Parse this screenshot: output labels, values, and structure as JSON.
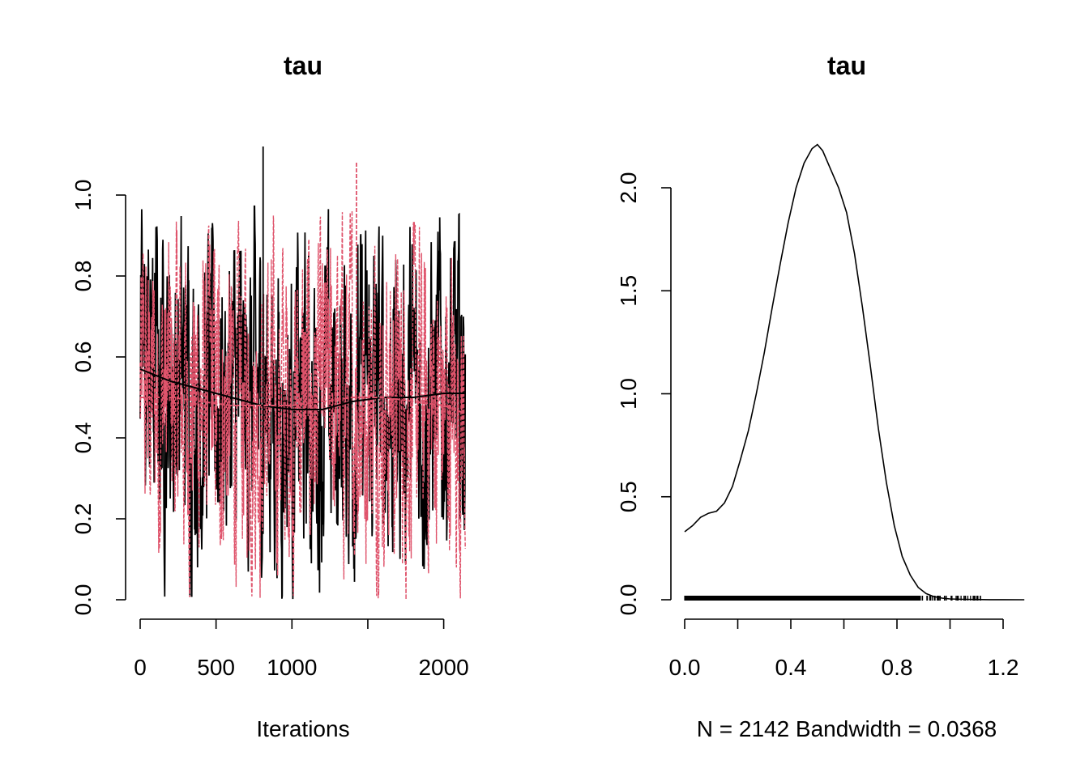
{
  "chart_data": [
    {
      "type": "line",
      "subtype": "trace",
      "title": "tau",
      "xlabel": "Iterations",
      "ylabel": "",
      "xlim": [
        0,
        2142
      ],
      "ylim": [
        0,
        1.1
      ],
      "x_ticks": [
        0,
        500,
        1000,
        1500,
        2000
      ],
      "x_tick_labels": [
        "0",
        "500",
        "1000",
        "",
        "2000"
      ],
      "y_ticks": [
        0,
        0.2,
        0.4,
        0.6,
        0.8,
        1.0
      ],
      "y_tick_labels": [
        "0.0",
        "0.2",
        "0.4",
        "0.6",
        "0.8",
        "1.0"
      ],
      "series": [
        {
          "color": "#000000",
          "line_style": "solid",
          "smooth_x": [
            0,
            200,
            400,
            600,
            800,
            1000,
            1200,
            1400,
            1600,
            1800,
            2000,
            2142
          ],
          "smooth_y": [
            0.57,
            0.54,
            0.52,
            0.5,
            0.48,
            0.47,
            0.47,
            0.49,
            0.5,
            0.5,
            0.51,
            0.51
          ],
          "max_value": 1.12,
          "min_value": 0.0
        },
        {
          "color": "#DF536B",
          "line_style": "dashed",
          "smooth_x": [
            0,
            200,
            400,
            600,
            800,
            1000,
            1200,
            1400,
            1600,
            1800,
            2000,
            2142
          ],
          "smooth_y": [
            0.5,
            0.5,
            0.49,
            0.48,
            0.48,
            0.48,
            0.49,
            0.5,
            0.5,
            0.49,
            0.48,
            0.46
          ],
          "max_value": 1.08,
          "min_value": 0.0
        }
      ]
    },
    {
      "type": "line",
      "subtype": "density",
      "title": "tau",
      "xlabel": "N = 2142   Bandwidth = 0.0368",
      "ylabel": "",
      "xlim": [
        0,
        1.28
      ],
      "ylim": [
        0,
        2.2
      ],
      "x_ticks": [
        0,
        0.2,
        0.4,
        0.6,
        0.8,
        1.0,
        1.2
      ],
      "x_tick_labels": [
        "0.0",
        "",
        "0.4",
        "",
        "0.8",
        "",
        "1.2"
      ],
      "y_ticks": [
        0,
        0.5,
        1.0,
        1.5,
        2.0
      ],
      "y_tick_labels": [
        "0.0",
        "0.5",
        "1.0",
        "1.5",
        "2.0"
      ],
      "x": [
        0.0,
        0.03,
        0.06,
        0.09,
        0.12,
        0.15,
        0.18,
        0.21,
        0.24,
        0.27,
        0.3,
        0.33,
        0.36,
        0.39,
        0.42,
        0.45,
        0.48,
        0.5,
        0.52,
        0.55,
        0.58,
        0.61,
        0.64,
        0.67,
        0.7,
        0.73,
        0.76,
        0.79,
        0.82,
        0.85,
        0.88,
        0.91,
        0.94,
        0.97,
        1.0,
        1.05,
        1.1,
        1.15,
        1.2,
        1.28
      ],
      "y": [
        0.33,
        0.36,
        0.4,
        0.42,
        0.43,
        0.47,
        0.55,
        0.68,
        0.82,
        1.0,
        1.2,
        1.42,
        1.63,
        1.83,
        2.0,
        2.12,
        2.19,
        2.21,
        2.18,
        2.09,
        2.0,
        1.88,
        1.68,
        1.42,
        1.13,
        0.83,
        0.57,
        0.36,
        0.21,
        0.12,
        0.06,
        0.03,
        0.015,
        0.008,
        0.004,
        0.002,
        0.001,
        0.0005,
        0.0002,
        0.0
      ],
      "rug_color": "#000000"
    }
  ]
}
